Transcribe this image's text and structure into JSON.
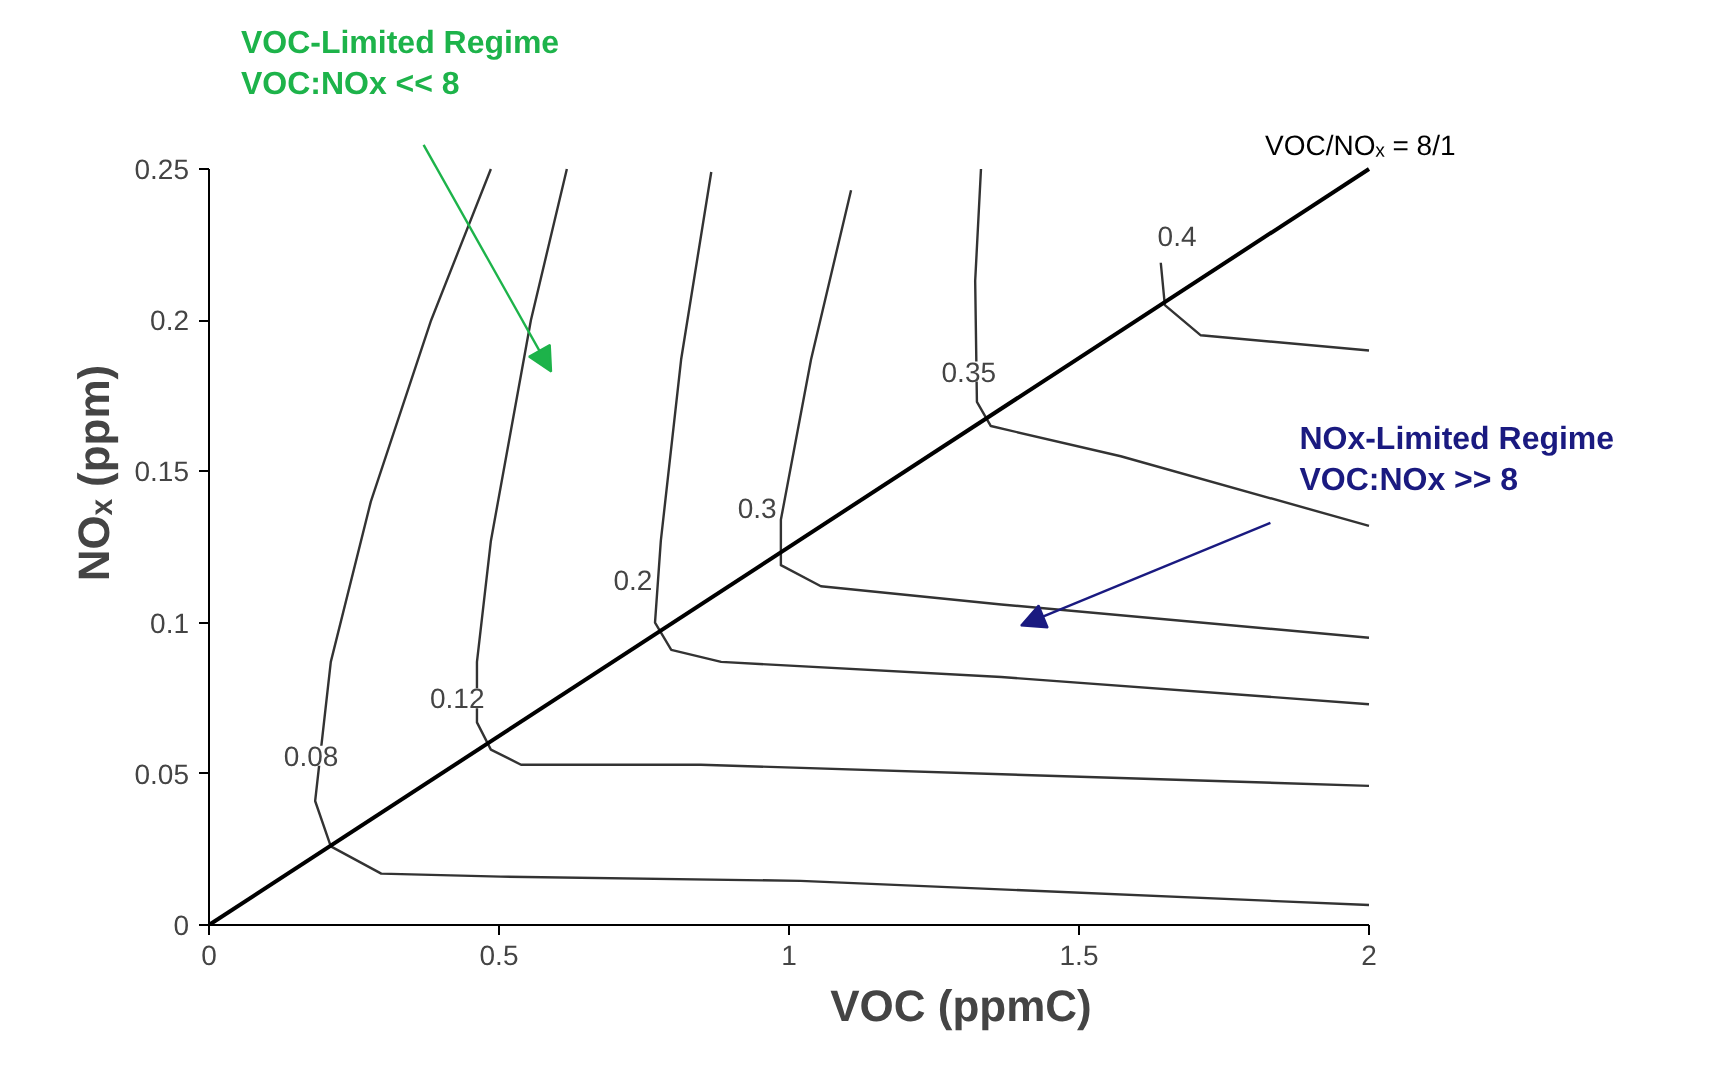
{
  "chart_data": {
    "type": "line",
    "xlabel": "VOC (ppmC)",
    "ylabel": "NOₓ (ppm)",
    "xlim": [
      0,
      2
    ],
    "ylim": [
      0,
      0.25
    ],
    "xticks": [
      0,
      0.5,
      1,
      1.5,
      2
    ],
    "yticks": [
      0,
      0.05,
      0.1,
      0.15,
      0.2,
      0.25
    ],
    "grid": false,
    "marker": "none",
    "line_style": "solid",
    "series": [
      {
        "color": "#333333",
        "x": [
          0.486,
          0.383,
          0.279,
          0.21,
          0.183,
          0.21,
          0.297,
          0.503,
          1.02,
          2.0
        ],
        "values": [
          0.25,
          0.2,
          0.14,
          0.087,
          0.041,
          0.026,
          0.017,
          0.016,
          0.0146,
          0.0066
        ]
      },
      {
        "color": "#333333",
        "x": [
          0.617,
          0.555,
          0.486,
          0.462,
          0.462,
          0.486,
          0.538,
          0.848,
          2.0
        ],
        "values": [
          0.25,
          0.2,
          0.127,
          0.087,
          0.067,
          0.058,
          0.053,
          0.053,
          0.046
        ]
      },
      {
        "color": "#333333",
        "x": [
          0.866,
          0.814,
          0.779,
          0.769,
          0.797,
          0.883,
          1.366,
          2.0
        ],
        "values": [
          0.249,
          0.187,
          0.127,
          0.1,
          0.091,
          0.087,
          0.082,
          0.073
        ]
      },
      {
        "color": "#333333",
        "x": [
          1.107,
          1.038,
          0.986,
          0.986,
          1.055,
          1.366,
          2.0
        ],
        "values": [
          0.243,
          0.187,
          0.134,
          0.119,
          0.112,
          0.106,
          0.095
        ]
      },
      {
        "color": "#333333",
        "x": [
          1.331,
          1.321,
          1.324,
          1.348,
          1.572,
          2.0
        ],
        "values": [
          0.25,
          0.213,
          0.173,
          0.165,
          0.155,
          0.132
        ]
      },
      {
        "color": "#333333",
        "x": [
          1.641,
          1.648,
          1.71,
          2.0
        ],
        "values": [
          0.219,
          0.205,
          0.195,
          0.19
        ]
      },
      {
        "name": "VOC/NOₓ = 8/1",
        "color": "#000000",
        "x": [
          0,
          2
        ],
        "values": [
          0,
          0.25
        ]
      }
    ],
    "annotations": [
      {
        "text": "0.08",
        "x": 0.176,
        "y": 0.056
      },
      {
        "text": "0.12",
        "x": 0.428,
        "y": 0.075
      },
      {
        "text": "0.2",
        "x": 0.731,
        "y": 0.114
      },
      {
        "text": "0.3",
        "x": 0.945,
        "y": 0.138
      },
      {
        "text": "0.35",
        "x": 1.31,
        "y": 0.183
      },
      {
        "text": "0.4",
        "x": 1.669,
        "y": 0.228
      },
      "VOC-Limited Regime\nVOC:NOx << 8",
      "NOx-Limited Regime\nVOC:NOx >> 8"
    ]
  }
}
